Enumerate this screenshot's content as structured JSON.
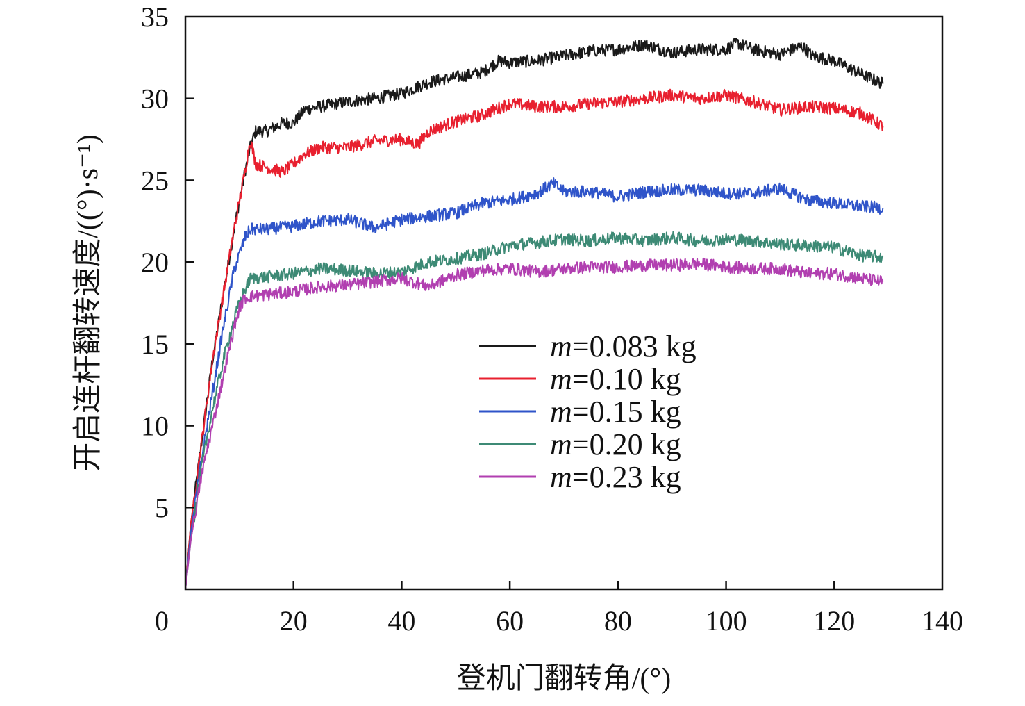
{
  "chart_data": {
    "type": "line",
    "title": "",
    "xlabel": "登机门翻转角/(°)",
    "ylabel": "开启连杆翻转速度/((°)·s⁻¹)",
    "xlim": [
      0,
      140
    ],
    "ylim": [
      0,
      35
    ],
    "xticks": [
      "0",
      "20",
      "40",
      "60",
      "80",
      "100",
      "120",
      "140"
    ],
    "yticks": [
      "5",
      "10",
      "15",
      "20",
      "25",
      "30",
      "35"
    ],
    "grid": false,
    "legend_position": "center-right",
    "series": [
      {
        "name": "m=0.083 kg",
        "color": "#1a1a1a",
        "x": [
          0,
          1,
          3,
          5,
          7,
          9,
          11,
          12,
          13,
          15,
          18,
          20,
          22,
          25,
          30,
          35,
          40,
          45,
          50,
          55,
          58,
          60,
          65,
          70,
          75,
          80,
          85,
          90,
          95,
          100,
          102,
          105,
          110,
          114,
          116,
          120,
          125,
          129
        ],
        "y": [
          0,
          4,
          9,
          14,
          18,
          22,
          25.5,
          27,
          28,
          28,
          28.5,
          28.5,
          29.3,
          29.5,
          29.8,
          30,
          30.3,
          31,
          31.3,
          31.6,
          32.3,
          32.2,
          32.3,
          32.6,
          32.9,
          33,
          33.3,
          32.8,
          33,
          33,
          33.4,
          33,
          32.7,
          33.2,
          32.6,
          32.3,
          31.5,
          30.9
        ]
      },
      {
        "name": "m=0.10 kg",
        "color": "#e8202f",
        "x": [
          0,
          1,
          3,
          5,
          7,
          9,
          11,
          12,
          13,
          15,
          18,
          20,
          22,
          25,
          30,
          35,
          40,
          43,
          45,
          50,
          55,
          60,
          65,
          70,
          75,
          80,
          85,
          90,
          95,
          100,
          105,
          110,
          115,
          120,
          125,
          129
        ],
        "y": [
          0,
          4,
          9,
          14,
          18,
          22,
          25.5,
          27.5,
          26,
          25.8,
          25.5,
          26,
          26.6,
          27,
          27,
          27.4,
          27.5,
          27.2,
          28,
          28.6,
          29,
          29.7,
          29.5,
          29.5,
          29.7,
          29.8,
          30,
          30.2,
          30,
          30.2,
          29.8,
          29.3,
          29.5,
          29.4,
          29.1,
          28.3
        ]
      },
      {
        "name": "m=0.15 kg",
        "color": "#2f54c9",
        "x": [
          0,
          1,
          3,
          5,
          7,
          9,
          10,
          11,
          12,
          15,
          20,
          25,
          30,
          35,
          40,
          45,
          50,
          55,
          60,
          65,
          68,
          70,
          75,
          80,
          85,
          90,
          95,
          100,
          105,
          110,
          115,
          120,
          125,
          129
        ],
        "y": [
          0,
          3.5,
          8,
          12,
          16,
          19.5,
          20.5,
          21.5,
          22,
          22,
          22.2,
          22.5,
          22.6,
          22.1,
          22.6,
          22.8,
          23,
          23.6,
          23.8,
          24.2,
          24.8,
          24.3,
          24.3,
          24,
          24.3,
          24.4,
          24.4,
          24.2,
          24.2,
          24.5,
          23.8,
          23.6,
          23.4,
          23.3
        ]
      },
      {
        "name": "m=0.20 kg",
        "color": "#3d8a75",
        "x": [
          0,
          1,
          3,
          5,
          7,
          9,
          10,
          11,
          12,
          15,
          20,
          25,
          30,
          35,
          40,
          45,
          50,
          55,
          60,
          65,
          70,
          75,
          80,
          85,
          90,
          95,
          100,
          105,
          110,
          115,
          120,
          125,
          129
        ],
        "y": [
          0,
          3,
          7.5,
          11,
          14,
          16.5,
          17.5,
          18.3,
          19,
          19.1,
          19.3,
          19.6,
          19.5,
          19.3,
          19.4,
          20,
          20.2,
          20.5,
          21,
          21.2,
          21.4,
          21.3,
          21.5,
          21.3,
          21.5,
          21.3,
          21.4,
          21.3,
          21.1,
          21,
          20.9,
          20.4,
          20.3
        ]
      },
      {
        "name": "m=0.23 kg",
        "color": "#b13fb0",
        "x": [
          0,
          1,
          3,
          5,
          7,
          9,
          10,
          11,
          12,
          15,
          20,
          25,
          30,
          35,
          40,
          45,
          50,
          55,
          60,
          65,
          70,
          75,
          80,
          85,
          90,
          95,
          100,
          105,
          110,
          115,
          120,
          125,
          129
        ],
        "y": [
          0,
          3,
          7,
          10,
          13,
          16,
          17.2,
          17.8,
          17.9,
          18,
          18.2,
          18.5,
          18.6,
          18.8,
          19,
          18.5,
          19.2,
          19.5,
          19.6,
          19.4,
          19.6,
          19.7,
          19.7,
          19.8,
          19.8,
          19.9,
          19.7,
          19.6,
          19.6,
          19.3,
          19.3,
          19,
          18.8
        ]
      }
    ]
  }
}
